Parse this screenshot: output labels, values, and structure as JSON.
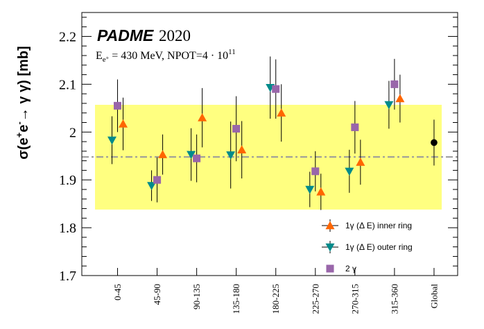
{
  "chart_data": {
    "type": "scatter",
    "ylabel": "σ(e⁺e⁻→ γ γ) [mb]",
    "title_brand": "PADME",
    "title_year": "2020",
    "subtitle": "E_e+ = 430 MeV, NPOT=4 · 10^11",
    "ylim": [
      1.7,
      2.25
    ],
    "yticks": [
      "1.7",
      "1.8",
      "1.9",
      "2",
      "2.1",
      "2.2"
    ],
    "categories": [
      "0-45",
      "45-90",
      "90-135",
      "135-180",
      "180-225",
      "225-270",
      "270-315",
      "315-360",
      "Global"
    ],
    "band": {
      "low": 1.838,
      "high": 2.057,
      "color": "#ffff80"
    },
    "reference_line": {
      "value": 1.948,
      "color": "#9a9a9a"
    },
    "series": [
      {
        "name": "1γ (Δ E) inner ring",
        "marker": "triangle-up",
        "color": "#ff6600",
        "values": [
          2.017,
          1.953,
          2.03,
          1.963,
          2.04,
          1.875,
          1.937,
          2.07
        ],
        "errors": [
          0.055,
          0.042,
          0.062,
          0.06,
          0.06,
          0.038,
          0.047,
          0.05
        ]
      },
      {
        "name": "1γ (Δ E) outer ring",
        "marker": "triangle-down",
        "color": "#008b8b",
        "values": [
          1.983,
          1.888,
          1.953,
          1.952,
          2.093,
          1.88,
          1.918,
          2.057
        ],
        "errors": [
          0.05,
          0.032,
          0.055,
          0.07,
          0.065,
          0.037,
          0.045,
          0.05
        ]
      },
      {
        "name": "2 γ",
        "marker": "square",
        "color": "#9966aa",
        "values": [
          2.055,
          1.9,
          1.945,
          2.007,
          2.09,
          1.918,
          2.01,
          2.1
        ],
        "errors": [
          0.055,
          0.047,
          0.05,
          0.068,
          0.062,
          0.042,
          0.055,
          0.053
        ]
      },
      {
        "name": "",
        "marker": "circle",
        "color": "#000000",
        "values": [
          null,
          null,
          null,
          null,
          null,
          null,
          null,
          null,
          1.978
        ],
        "errors": [
          null,
          null,
          null,
          null,
          null,
          null,
          null,
          null,
          0.048
        ]
      }
    ],
    "legend": {
      "placement": "bottom-right",
      "entries": [
        "1γ (Δ E) inner ring",
        "1γ (Δ E) outer ring",
        "2 γ"
      ]
    },
    "grid": false
  }
}
